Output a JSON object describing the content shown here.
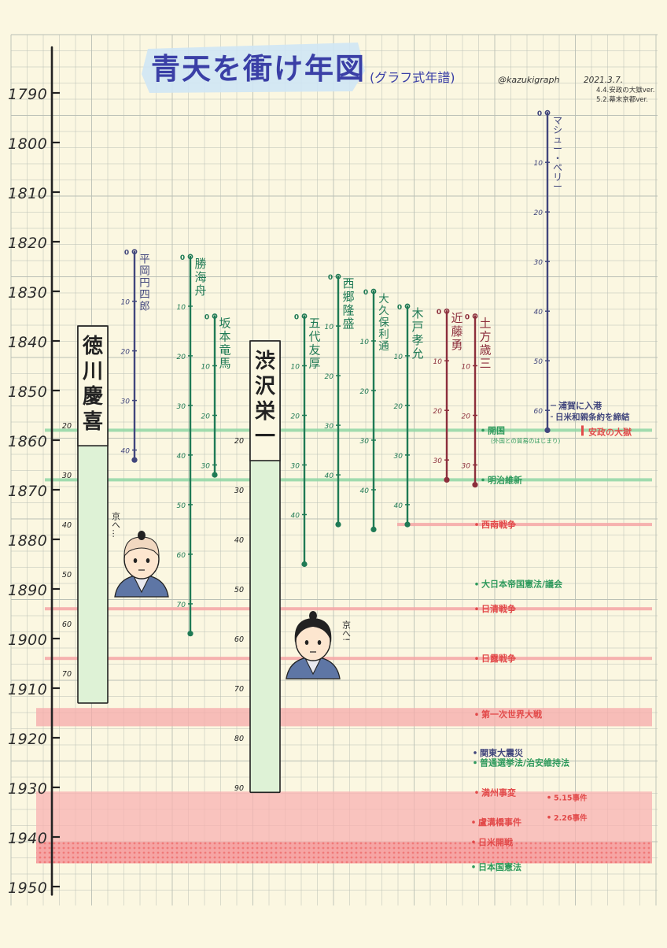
{
  "chart_data": {
    "type": "timeline",
    "title": "青天を衝け年図",
    "subtitle": "(グラフ式年譜)",
    "credit": "@kazukigraph",
    "dates": [
      "2021.3.7.",
      "4.4.安政の大獄ver.",
      "5.2.幕末京都ver."
    ],
    "axis": {
      "ylim": [
        1790,
        1950
      ],
      "ticks": [
        1790,
        1800,
        1810,
        1820,
        1830,
        1840,
        1850,
        1860,
        1870,
        1880,
        1890,
        1900,
        1910,
        1920,
        1930,
        1940,
        1950
      ]
    },
    "figures": [
      {
        "name": "徳川慶喜",
        "birth": 1837,
        "death": 1913,
        "style": "bar",
        "color": "#3c7a58",
        "age_labels": [
          "20",
          "30",
          "40",
          "50",
          "60",
          "70"
        ]
      },
      {
        "name": "平岡円四郎",
        "birth": 1822,
        "death": 1864,
        "style": "line",
        "color": "#41467d",
        "age_labels": [
          "0",
          "10",
          "20",
          "30",
          "40"
        ]
      },
      {
        "name": "勝海舟",
        "birth": 1823,
        "death": 1899,
        "style": "line",
        "color": "#1f7a55",
        "age_labels": [
          "0",
          "10",
          "20",
          "30",
          "40",
          "50",
          "60",
          "70"
        ]
      },
      {
        "name": "坂本竜馬",
        "birth": 1835,
        "death": 1867,
        "style": "line",
        "color": "#1f7a55",
        "age_labels": [
          "0",
          "10",
          "20",
          "30"
        ]
      },
      {
        "name": "渋沢栄一",
        "birth": 1840,
        "death": 1931,
        "style": "bar",
        "color": "#3c7a58",
        "age_labels": [
          "20",
          "30",
          "40",
          "50",
          "60",
          "70",
          "80",
          "90"
        ]
      },
      {
        "name": "五代友厚",
        "birth": 1835,
        "death": 1885,
        "style": "line",
        "color": "#1f7a55",
        "age_labels": [
          "0",
          "10",
          "20",
          "30",
          "40"
        ]
      },
      {
        "name": "西郷隆盛",
        "birth": 1827,
        "death": 1877,
        "style": "line",
        "color": "#1f7a55",
        "age_labels": [
          "0",
          "10",
          "20",
          "30",
          "40"
        ]
      },
      {
        "name": "大久保利通",
        "birth": 1830,
        "death": 1878,
        "style": "line",
        "color": "#1f7a55",
        "age_labels": [
          "0",
          "10",
          "20",
          "30",
          "40"
        ]
      },
      {
        "name": "木戸孝允",
        "birth": 1833,
        "death": 1877,
        "style": "line",
        "color": "#1f7a55",
        "age_labels": [
          "0",
          "10",
          "20",
          "30",
          "40"
        ]
      },
      {
        "name": "近藤勇",
        "birth": 1834,
        "death": 1868,
        "style": "line",
        "color": "#8c2e3c",
        "age_labels": [
          "0",
          "10",
          "20",
          "30"
        ]
      },
      {
        "name": "土方歳三",
        "birth": 1835,
        "death": 1869,
        "style": "line",
        "color": "#8c2e3c",
        "age_labels": [
          "0",
          "10",
          "20",
          "30"
        ]
      },
      {
        "name": "マシュー・ペリー",
        "birth": 1794,
        "death": 1858,
        "style": "line",
        "color": "#41467d",
        "age_labels": [
          "0",
          "10",
          "20",
          "30",
          "40",
          "50",
          "60"
        ]
      }
    ],
    "events": [
      {
        "label": "浦賀に入港",
        "year": 1853,
        "color": "#41467d",
        "band": null
      },
      {
        "label": "日米和親条約を締結",
        "year": 1854,
        "color": "#41467d",
        "band": null
      },
      {
        "label": "開国",
        "note": "(外国との貿易のはじまり)",
        "year": 1858,
        "color": "#2e9a5c",
        "band": "green"
      },
      {
        "label": "安政の大獄",
        "year": 1858,
        "color": "#e24a4a",
        "band": null
      },
      {
        "label": "明治維新",
        "year": 1868,
        "color": "#2e9a5c",
        "band": "green"
      },
      {
        "label": "西南戦争",
        "year": 1877,
        "color": "#e24a4a",
        "band": "red"
      },
      {
        "label": "大日本帝国憲法/議会",
        "year": 1889,
        "color": "#2e9a5c",
        "band": null
      },
      {
        "label": "日清戦争",
        "year": 1894,
        "color": "#e24a4a",
        "band": "red"
      },
      {
        "label": "日露戦争",
        "year": 1904,
        "color": "#e24a4a",
        "band": "red"
      },
      {
        "label": "第一次世界大戦",
        "year": 1914,
        "end": 1918,
        "color": "#e24a4a",
        "band": "red-wide"
      },
      {
        "label": "関東大震災",
        "year": 1923,
        "color": "#41467d",
        "band": null
      },
      {
        "label": "普通選挙法/治安維持法",
        "year": 1925,
        "color": "#2e9a5c",
        "band": null
      },
      {
        "label": "満州事変",
        "year": 1931,
        "end": 1945,
        "color": "#e24a4a",
        "band": "red-period"
      },
      {
        "label": "5.15事件",
        "year": 1932,
        "color": "#e24a4a",
        "band": null
      },
      {
        "label": "2.26事件",
        "year": 1936,
        "color": "#e24a4a",
        "band": null
      },
      {
        "label": "盧溝橋事件",
        "year": 1937,
        "color": "#e24a4a",
        "band": null
      },
      {
        "label": "日米開戦",
        "year": 1941,
        "end": 1945,
        "color": "#e24a4a",
        "band": "red-dotted"
      },
      {
        "label": "日本国憲法",
        "year": 1946,
        "color": "#2e9a5c",
        "band": null
      }
    ],
    "speech": [
      {
        "text": "京へ…",
        "who": "徳川慶喜"
      },
      {
        "text": "京へ!",
        "who": "渋沢栄一"
      }
    ]
  }
}
